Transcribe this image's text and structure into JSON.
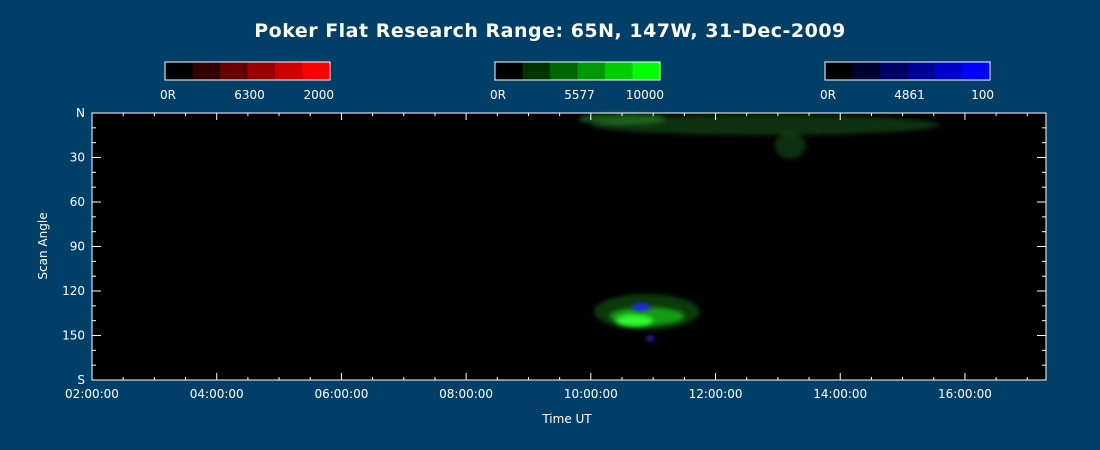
{
  "chart_data": {
    "type": "heatmap",
    "title": "Poker Flat Research Range: 65N, 147W, 31-Dec-2009",
    "xlabel": "Time UT",
    "ylabel": "Scan Angle",
    "x_ticks": [
      "02:00:00",
      "04:00:00",
      "06:00:00",
      "08:00:00",
      "10:00:00",
      "12:00:00",
      "14:00:00",
      "16:00:00"
    ],
    "x_tick_hours": [
      2,
      4,
      6,
      8,
      10,
      12,
      14,
      16
    ],
    "x_range_hours": [
      2.0,
      17.3
    ],
    "y_ticks": [
      "N",
      "30",
      "60",
      "90",
      "120",
      "150",
      "S"
    ],
    "y_tick_values": [
      0,
      30,
      60,
      90,
      120,
      150,
      180
    ],
    "y_range": [
      0,
      180
    ],
    "y_inverted": true,
    "grid": false,
    "background_color": "#000000",
    "colorbars": [
      {
        "channel": "6300",
        "min_label": "0R",
        "mid_label": "6300",
        "max_label": "2000",
        "colors": [
          "#000000",
          "#330000",
          "#660000",
          "#990000",
          "#cc0000",
          "#ff0000"
        ]
      },
      {
        "channel": "5577",
        "min_label": "0R",
        "mid_label": "5577",
        "max_label": "10000",
        "colors": [
          "#000000",
          "#003300",
          "#006600",
          "#009900",
          "#00cc00",
          "#00ff00"
        ]
      },
      {
        "channel": "4861",
        "min_label": "0R",
        "mid_label": "4861",
        "max_label": "100",
        "colors": [
          "#000000",
          "#000033",
          "#000066",
          "#000099",
          "#0000cc",
          "#0000ff"
        ]
      }
    ],
    "emission_regions": [
      {
        "channel": "5577",
        "t_center": 12.8,
        "angle_center": 8,
        "t_halfwidth": 2.8,
        "angle_halfwidth": 7,
        "color": "#1a5a1a",
        "opacity": 0.55
      },
      {
        "channel": "5577",
        "t_center": 10.5,
        "angle_center": 4,
        "t_halfwidth": 0.7,
        "angle_halfwidth": 4,
        "color": "#2a8a2a",
        "opacity": 0.6
      },
      {
        "channel": "5577",
        "t_center": 13.2,
        "angle_center": 22,
        "t_halfwidth": 0.25,
        "angle_halfwidth": 9,
        "color": "#1f5f1f",
        "opacity": 0.5
      },
      {
        "channel": "5577",
        "t_center": 10.9,
        "angle_center": 134,
        "t_halfwidth": 0.85,
        "angle_halfwidth": 12,
        "color": "#0f3f0f",
        "opacity": 0.9
      },
      {
        "channel": "5577",
        "t_center": 10.9,
        "angle_center": 137,
        "t_halfwidth": 0.6,
        "angle_halfwidth": 6,
        "color": "#18a818",
        "opacity": 0.9
      },
      {
        "channel": "5577",
        "t_center": 10.7,
        "angle_center": 140,
        "t_halfwidth": 0.3,
        "angle_halfwidth": 4,
        "color": "#33ff33",
        "opacity": 0.95
      },
      {
        "channel": "4861",
        "t_center": 10.8,
        "angle_center": 131,
        "t_halfwidth": 0.15,
        "angle_halfwidth": 2.5,
        "color": "#2020ff",
        "opacity": 1.0
      },
      {
        "channel": "4861",
        "t_center": 10.95,
        "angle_center": 152,
        "t_halfwidth": 0.06,
        "angle_halfwidth": 1.5,
        "color": "#3030ff",
        "opacity": 1.0
      }
    ]
  }
}
